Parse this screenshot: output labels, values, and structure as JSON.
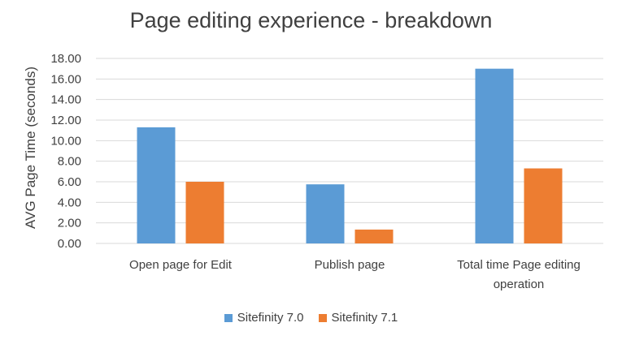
{
  "chart_data": {
    "type": "bar",
    "title": "Page editing experience - breakdown",
    "xlabel": "",
    "ylabel": "AVG Page Time (seconds)",
    "ylim": [
      0,
      18
    ],
    "yticks": [
      "0.00",
      "2.00",
      "4.00",
      "6.00",
      "8.00",
      "10.00",
      "12.00",
      "14.00",
      "16.00",
      "18.00"
    ],
    "grid": true,
    "legend_position": "bottom",
    "categories": [
      [
        "Open page for Edit"
      ],
      [
        "Publish page"
      ],
      [
        "Total time Page editing",
        "operation"
      ]
    ],
    "series": [
      {
        "name": "Sitefinity 7.0",
        "color": "#5B9BD5",
        "values": [
          11.3,
          5.75,
          17.0
        ]
      },
      {
        "name": "Sitefinity 7.1",
        "color": "#ED7D31",
        "values": [
          6.0,
          1.35,
          7.3
        ]
      }
    ]
  }
}
